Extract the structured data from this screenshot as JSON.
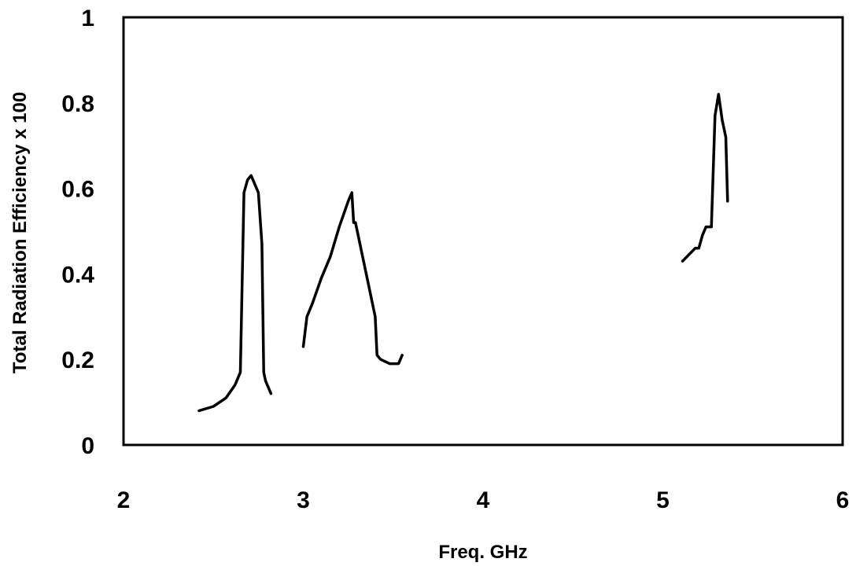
{
  "chart_data": {
    "type": "line",
    "title": "",
    "xlabel": "Freq. GHz",
    "ylabel": "Total Radiation Efficiency x 100",
    "xlim": [
      2,
      6
    ],
    "ylim": [
      0,
      1
    ],
    "x_ticks": [
      "2",
      "3",
      "4",
      "5",
      "6"
    ],
    "y_ticks": [
      "0",
      "0.2",
      "0.4",
      "0.6",
      "0.8",
      "1"
    ],
    "grid": false,
    "legend": "none",
    "line_color": "#000000",
    "series": [
      {
        "x": [
          2.42,
          2.5,
          2.57,
          2.62,
          2.65,
          2.67,
          2.69,
          2.71,
          2.73,
          2.75,
          2.77,
          2.78,
          2.79,
          2.82
        ],
        "y": [
          0.08,
          0.09,
          0.11,
          0.14,
          0.17,
          0.59,
          0.62,
          0.63,
          0.61,
          0.59,
          0.47,
          0.17,
          0.15,
          0.12
        ]
      },
      {
        "x": [
          3.0,
          3.02,
          3.05,
          3.1,
          3.15,
          3.2,
          3.25,
          3.27,
          3.28,
          3.29,
          3.35,
          3.4,
          3.41,
          3.43,
          3.48,
          3.53,
          3.55
        ],
        "y": [
          0.23,
          0.3,
          0.33,
          0.39,
          0.44,
          0.51,
          0.57,
          0.59,
          0.52,
          0.52,
          0.4,
          0.3,
          0.21,
          0.2,
          0.19,
          0.19,
          0.21
        ]
      },
      {
        "x": [
          5.11,
          5.18,
          5.2,
          5.22,
          5.24,
          5.27,
          5.29,
          5.31,
          5.33,
          5.35,
          5.36
        ],
        "y": [
          0.43,
          0.46,
          0.46,
          0.49,
          0.51,
          0.51,
          0.77,
          0.82,
          0.76,
          0.72,
          0.57
        ]
      }
    ]
  }
}
